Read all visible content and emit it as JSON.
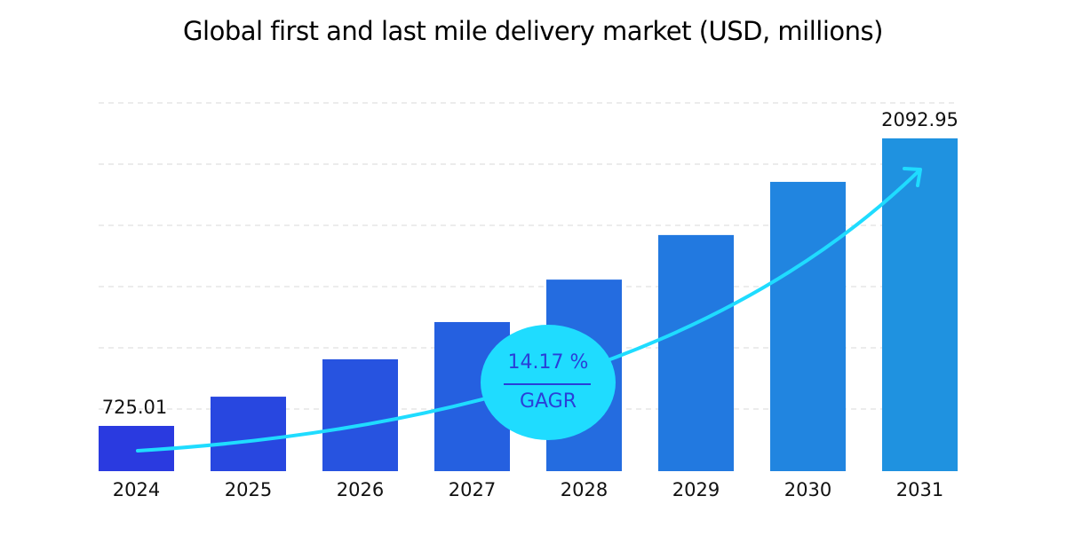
{
  "chart_data": {
    "type": "bar",
    "title": "Global first and last mile delivery market (USD, millions)",
    "categories": [
      "2024",
      "2025",
      "2026",
      "2027",
      "2028",
      "2029",
      "2030",
      "2031"
    ],
    "values": [
      725.01,
      864,
      1042,
      1219,
      1421,
      1633,
      1886,
      2092.95
    ],
    "data_labels": {
      "0": "725.01",
      "7": "2092.95"
    },
    "grid": "horizontal dashed",
    "colors": {
      "start": "#2a3ae0",
      "end": "#1f92e0",
      "trend_arrow": "#1fdcff",
      "badge_bg": "#1fdcff",
      "badge_text": "#2a3fd8"
    },
    "annotation": {
      "value": "14.17 %",
      "label": "GAGR"
    }
  }
}
